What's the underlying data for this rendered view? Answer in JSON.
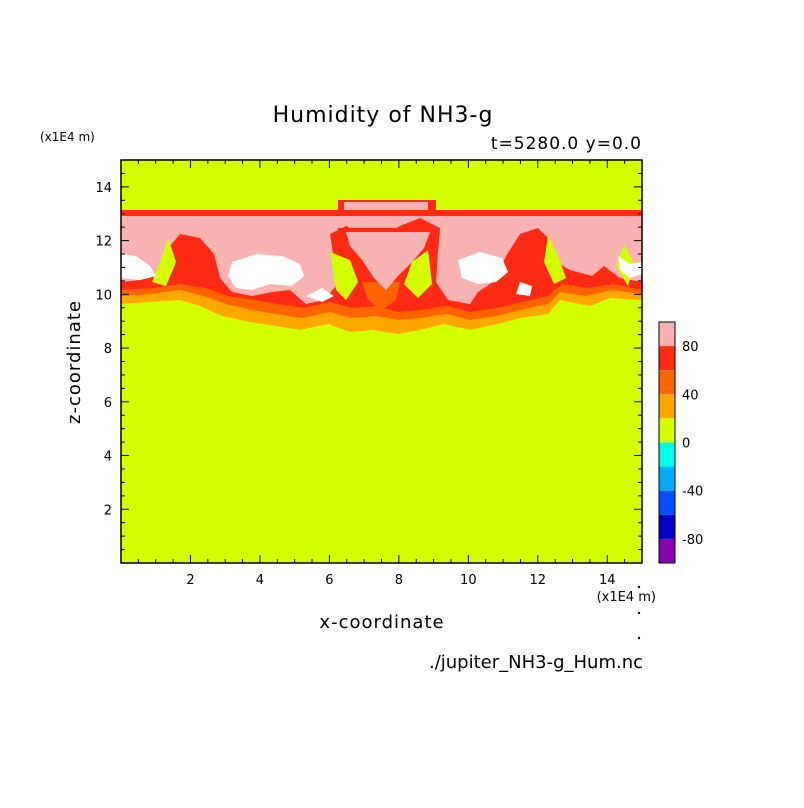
{
  "chart_data": {
    "type": "heatmap",
    "title": "Humidity of NH3-g",
    "subtitle": "t=5280.0 y=0.0",
    "xlabel": "x-coordinate",
    "ylabel": "z-coordinate",
    "x_unit_label": "(x1E4 m)",
    "y_unit_label": "(x1E4 m)",
    "source_file": "./jupiter_NH3-g_Hum.nc",
    "xlim": [
      0,
      15
    ],
    "ylim": [
      0,
      15
    ],
    "x_ticks": [
      2,
      4,
      6,
      8,
      10,
      12,
      14
    ],
    "y_ticks": [
      2,
      4,
      6,
      8,
      10,
      12,
      14
    ],
    "x_tick_labels": [
      "2",
      "4",
      "6",
      "8",
      "10",
      "12",
      "14"
    ],
    "y_tick_labels": [
      "2",
      "4",
      "6",
      "8",
      "10",
      "12",
      "14"
    ],
    "grid": false,
    "legend": "colorbar-right",
    "colorbar": {
      "range": [
        -100,
        100
      ],
      "tick_values": [
        80,
        40,
        0,
        -40,
        -80
      ],
      "tick_labels": [
        "80",
        "40",
        "0",
        "-40",
        "-80"
      ],
      "levels": [
        {
          "range": [
            80,
            100
          ],
          "color": "#f9b3b3"
        },
        {
          "range": [
            60,
            80
          ],
          "color": "#ff2a14"
        },
        {
          "range": [
            40,
            60
          ],
          "color": "#ff6400"
        },
        {
          "range": [
            20,
            40
          ],
          "color": "#ffa600"
        },
        {
          "range": [
            0,
            20
          ],
          "color": "#d4ff00"
        },
        {
          "range": [
            -20,
            0
          ],
          "color": "#00ffe8"
        },
        {
          "range": [
            -40,
            -20
          ],
          "color": "#00aaff"
        },
        {
          "range": [
            -60,
            -40
          ],
          "color": "#0050ff"
        },
        {
          "range": [
            -80,
            -60
          ],
          "color": "#0000c8"
        },
        {
          "range": [
            -100,
            -80
          ],
          "color": "#8a00b4"
        }
      ]
    },
    "field_description_values": {
      "background_level": 10,
      "cloud_layer_z_range": [
        8.5,
        13.1
      ],
      "saturated_level": 100
    }
  }
}
